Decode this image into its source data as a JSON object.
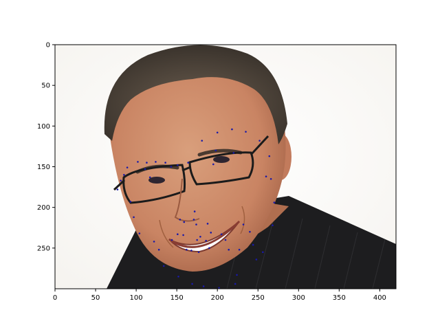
{
  "chart_data": {
    "type": "scatter",
    "title": "",
    "xlabel": "",
    "ylabel": "",
    "xlim": [
      0,
      420
    ],
    "ylim": [
      300,
      0
    ],
    "y_inverted": true,
    "grid": false,
    "background": "photograph of a smiling man wearing rectangular glasses, white backdrop",
    "x_ticks": [
      0,
      50,
      100,
      150,
      200,
      250,
      300,
      350,
      400
    ],
    "y_ticks": [
      0,
      50,
      100,
      150,
      200,
      250
    ],
    "marker_color": "#1a1aa8",
    "series": [
      {
        "points": [
          [
            77,
            178
          ],
          [
            81,
            167
          ],
          [
            85,
            160
          ],
          [
            89,
            151
          ],
          [
            93,
            193
          ],
          [
            97,
            212
          ],
          [
            102,
            144
          ],
          [
            104,
            232
          ],
          [
            111,
            153
          ],
          [
            113,
            145
          ],
          [
            117,
            163
          ],
          [
            122,
            242
          ],
          [
            124,
            144
          ],
          [
            128,
            252
          ],
          [
            134,
            272
          ],
          [
            136,
            145
          ],
          [
            143,
            150
          ],
          [
            144,
            240
          ],
          [
            151,
            148
          ],
          [
            151,
            233
          ],
          [
            152,
            285
          ],
          [
            154,
            215
          ],
          [
            158,
            234
          ],
          [
            159,
            218
          ],
          [
            162,
            252
          ],
          [
            164,
            145
          ],
          [
            168,
            253
          ],
          [
            169,
            294
          ],
          [
            171,
            215
          ],
          [
            172,
            205
          ],
          [
            174,
            221
          ],
          [
            175,
            240
          ],
          [
            177,
            255
          ],
          [
            179,
            236
          ],
          [
            181,
            118
          ],
          [
            183,
            297
          ],
          [
            186,
            241
          ],
          [
            188,
            220
          ],
          [
            190,
            250
          ],
          [
            192,
            231
          ],
          [
            195,
            147
          ],
          [
            198,
            130
          ],
          [
            200,
            108
          ],
          [
            202,
            299
          ],
          [
            205,
            233
          ],
          [
            210,
            240
          ],
          [
            214,
            252
          ],
          [
            218,
            104
          ],
          [
            220,
            133
          ],
          [
            222,
            294
          ],
          [
            224,
            283
          ],
          [
            227,
            252
          ],
          [
            232,
            221
          ],
          [
            235,
            107
          ],
          [
            240,
            230
          ],
          [
            244,
            246
          ],
          [
            248,
            264
          ],
          [
            252,
            118
          ],
          [
            256,
            255
          ],
          [
            260,
            162
          ],
          [
            264,
            137
          ],
          [
            266,
            165
          ],
          [
            268,
            222
          ],
          [
            270,
            194
          ]
        ]
      }
    ]
  }
}
